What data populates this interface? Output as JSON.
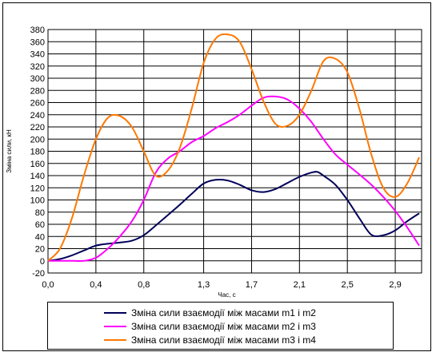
{
  "chart_data": {
    "type": "line",
    "title": "",
    "xlabel": "Час, с",
    "ylabel": "Зміна сили, кН",
    "xlim": [
      0,
      3.12
    ],
    "ylim": [
      -20,
      380
    ],
    "x_ticks": [
      0.0,
      0.4,
      0.8,
      1.3,
      1.7,
      2.1,
      2.5,
      2.9
    ],
    "x_tick_labels": [
      "0,0",
      "0,4",
      "0,8",
      "1,3",
      "1,7",
      "2,1",
      "2,5",
      "2,9"
    ],
    "y_ticks": [
      -20,
      0,
      20,
      40,
      60,
      80,
      100,
      120,
      140,
      160,
      180,
      200,
      220,
      240,
      260,
      280,
      300,
      320,
      340,
      360,
      380
    ],
    "grid": true,
    "legend_position": "bottom",
    "series": [
      {
        "name": "Зміна сили взаємодії між масами m1 і m2",
        "color": "#00005a",
        "points": [
          [
            0.0,
            0
          ],
          [
            0.1,
            3
          ],
          [
            0.2,
            9
          ],
          [
            0.3,
            17
          ],
          [
            0.4,
            25
          ],
          [
            0.5,
            28
          ],
          [
            0.6,
            30
          ],
          [
            0.7,
            33
          ],
          [
            0.8,
            42
          ],
          [
            0.9,
            58
          ],
          [
            1.0,
            75
          ],
          [
            1.1,
            92
          ],
          [
            1.2,
            110
          ],
          [
            1.3,
            127
          ],
          [
            1.4,
            133
          ],
          [
            1.5,
            132
          ],
          [
            1.6,
            125
          ],
          [
            1.7,
            116
          ],
          [
            1.8,
            113
          ],
          [
            1.9,
            118
          ],
          [
            2.0,
            128
          ],
          [
            2.1,
            138
          ],
          [
            2.2,
            145
          ],
          [
            2.25,
            146
          ],
          [
            2.3,
            140
          ],
          [
            2.4,
            125
          ],
          [
            2.5,
            100
          ],
          [
            2.6,
            70
          ],
          [
            2.7,
            43
          ],
          [
            2.8,
            42
          ],
          [
            2.9,
            50
          ],
          [
            3.0,
            65
          ],
          [
            3.1,
            78
          ]
        ]
      },
      {
        "name": "Зміна сили взаємодії між масами m2 і m3",
        "color": "#ff00ff",
        "points": [
          [
            0.0,
            0
          ],
          [
            0.1,
            0
          ],
          [
            0.2,
            0
          ],
          [
            0.3,
            0
          ],
          [
            0.4,
            5
          ],
          [
            0.5,
            20
          ],
          [
            0.6,
            40
          ],
          [
            0.7,
            65
          ],
          [
            0.8,
            100
          ],
          [
            0.9,
            145
          ],
          [
            1.0,
            168
          ],
          [
            1.1,
            180
          ],
          [
            1.2,
            195
          ],
          [
            1.3,
            205
          ],
          [
            1.4,
            218
          ],
          [
            1.5,
            228
          ],
          [
            1.6,
            240
          ],
          [
            1.7,
            255
          ],
          [
            1.8,
            268
          ],
          [
            1.9,
            270
          ],
          [
            2.0,
            265
          ],
          [
            2.1,
            250
          ],
          [
            2.2,
            228
          ],
          [
            2.3,
            200
          ],
          [
            2.4,
            175
          ],
          [
            2.5,
            158
          ],
          [
            2.6,
            142
          ],
          [
            2.7,
            125
          ],
          [
            2.8,
            105
          ],
          [
            2.9,
            82
          ],
          [
            3.0,
            55
          ],
          [
            3.1,
            25
          ]
        ]
      },
      {
        "name": "Зміна сили взаємодії між масами m3 і m4",
        "color": "#ff7800",
        "points": [
          [
            0.0,
            0
          ],
          [
            0.1,
            20
          ],
          [
            0.2,
            70
          ],
          [
            0.3,
            140
          ],
          [
            0.4,
            200
          ],
          [
            0.5,
            235
          ],
          [
            0.6,
            238
          ],
          [
            0.7,
            220
          ],
          [
            0.8,
            180
          ],
          [
            0.9,
            140
          ],
          [
            1.0,
            148
          ],
          [
            1.1,
            185
          ],
          [
            1.2,
            250
          ],
          [
            1.3,
            325
          ],
          [
            1.4,
            365
          ],
          [
            1.5,
            372
          ],
          [
            1.6,
            360
          ],
          [
            1.7,
            315
          ],
          [
            1.8,
            262
          ],
          [
            1.9,
            225
          ],
          [
            2.0,
            222
          ],
          [
            2.1,
            240
          ],
          [
            2.2,
            280
          ],
          [
            2.3,
            328
          ],
          [
            2.4,
            332
          ],
          [
            2.5,
            310
          ],
          [
            2.6,
            250
          ],
          [
            2.7,
            175
          ],
          [
            2.8,
            120
          ],
          [
            2.9,
            105
          ],
          [
            3.0,
            127
          ],
          [
            3.1,
            170
          ]
        ]
      }
    ]
  }
}
